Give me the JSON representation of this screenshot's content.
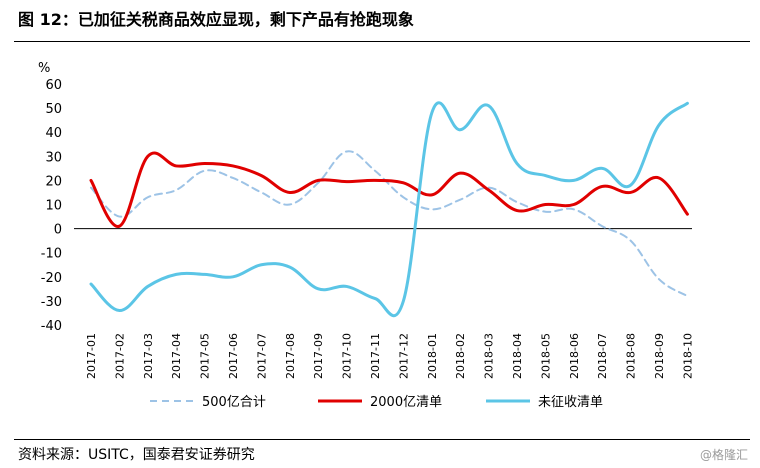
{
  "header": {
    "title": "图 12：已加征关税商品效应显现，剩下产品有抢跑现象"
  },
  "footer": {
    "source": "资料来源：USITC，国泰君安证券研究",
    "watermark": "@格隆汇"
  },
  "chart_data": {
    "type": "line",
    "ylabel": "%",
    "ylim": [
      -40,
      60
    ],
    "yticks": [
      -40,
      -30,
      -20,
      -10,
      0,
      10,
      20,
      30,
      40,
      50,
      60
    ],
    "grid": false,
    "legend_position": "bottom",
    "x": [
      "2017-01",
      "2017-02",
      "2017-03",
      "2017-04",
      "2017-05",
      "2017-06",
      "2017-07",
      "2017-08",
      "2017-09",
      "2017-10",
      "2017-11",
      "2017-12",
      "2018-01",
      "2018-02",
      "2018-03",
      "2018-04",
      "2018-05",
      "2018-06",
      "2018-07",
      "2018-08",
      "2018-09",
      "2018-10"
    ],
    "series": [
      {
        "name": "500亿合计",
        "style": "dashed",
        "color": "#9dc3e6",
        "values": [
          17,
          5,
          13,
          16,
          24,
          21,
          15,
          10,
          19,
          32,
          24,
          13,
          8,
          12,
          17,
          11,
          7,
          8,
          1,
          -5,
          -21,
          -28
        ]
      },
      {
        "name": "2000亿清单",
        "style": "solid",
        "color": "#e00000",
        "values": [
          20,
          1,
          30,
          26,
          27,
          26,
          22,
          15,
          20,
          19.5,
          20,
          19,
          14,
          23,
          16,
          7.5,
          10,
          10,
          17.5,
          15,
          21,
          6
        ]
      },
      {
        "name": "未征收清单",
        "style": "solid",
        "color": "#5bc5e6",
        "values": [
          -23,
          -34,
          -24,
          -19,
          -19,
          -20,
          -15,
          -16,
          -25,
          -24,
          -29,
          -30,
          48,
          41,
          51,
          27,
          22,
          20,
          25,
          18,
          43,
          52
        ]
      }
    ]
  }
}
